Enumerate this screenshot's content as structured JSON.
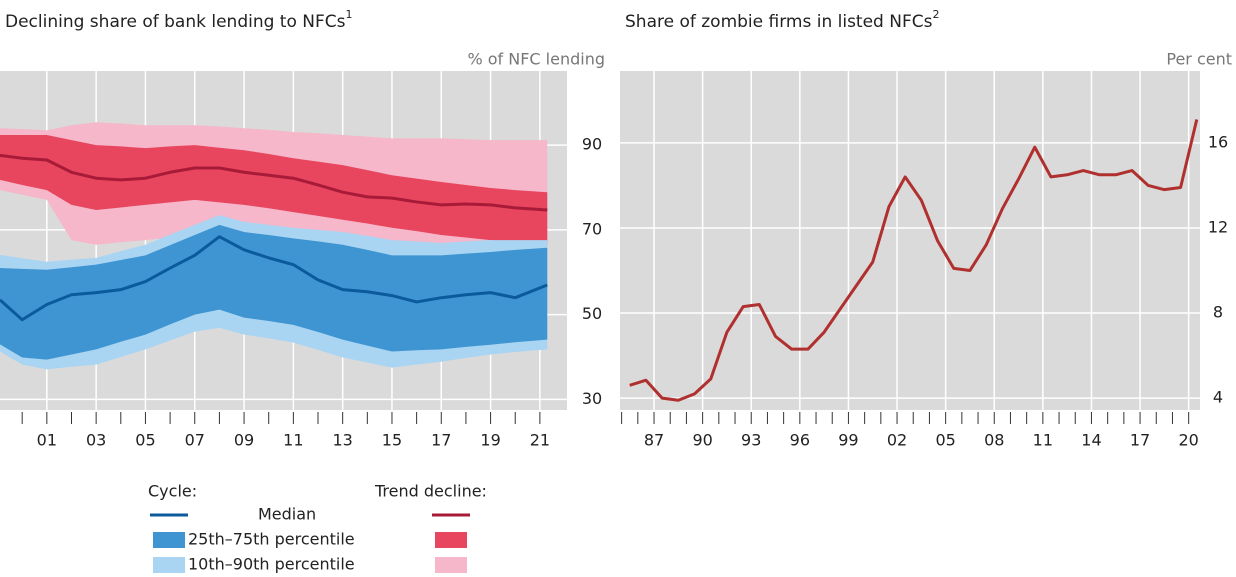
{
  "chart_data": [
    {
      "type": "band-line",
      "title": "Declining share of bank lending to NFCs",
      "title_note": "1",
      "y_label": "% of NFC lending",
      "x": [
        1999.1,
        2000,
        2001,
        2002,
        2003,
        2004,
        2005,
        2006,
        2007,
        2008,
        2009,
        2010,
        2011,
        2012,
        2013,
        2014,
        2015,
        2016,
        2017,
        2018,
        2019,
        2020,
        2021.3
      ],
      "xlim": [
        1999.1,
        2022.1
      ],
      "xticks": [
        {
          "value": 2001,
          "label": "01"
        },
        {
          "value": 2003,
          "label": "03"
        },
        {
          "value": 2005,
          "label": "05"
        },
        {
          "value": 2007,
          "label": "07"
        },
        {
          "value": 2009,
          "label": "09"
        },
        {
          "value": 2011,
          "label": "11"
        },
        {
          "value": 2013,
          "label": "13"
        },
        {
          "value": 2015,
          "label": "15"
        },
        {
          "value": 2017,
          "label": "17"
        },
        {
          "value": 2019,
          "label": "19"
        },
        {
          "value": 2021,
          "label": "21"
        }
      ],
      "xminorticks": [
        2000,
        2002,
        2004,
        2006,
        2008,
        2010,
        2012,
        2014,
        2016,
        2018,
        2020
      ],
      "ylim": [
        27.5,
        107.5
      ],
      "yticks": [
        30,
        50,
        70,
        90
      ],
      "grid": true,
      "legend_items": [
        "Median",
        "25th–75th percentile",
        "10th–90th percentile"
      ],
      "groups": [
        {
          "name": "Cycle:",
          "median": {
            "color": "#0b5a9c",
            "values": [
              53.5,
              48.8,
              52.4,
              54.7,
              55.2,
              55.9,
              57.8,
              61,
              64,
              68.4,
              65.3,
              63.4,
              61.8,
              58.2,
              55.9,
              55.4,
              54.5,
              53,
              54,
              54.7,
              55.2,
              54,
              57
            ]
          },
          "bands": [
            {
              "color": "#3f95d1",
              "lower": [
                43,
                39.9,
                39.4,
                40.6,
                41.8,
                43.6,
                45.3,
                47.7,
                50,
                51.2,
                49.3,
                48.5,
                47.6,
                45.9,
                44.1,
                42.7,
                41.3,
                41.6,
                41.8,
                42.4,
                42.9,
                43.5,
                44.1
              ],
              "upper": [
                61,
                60.8,
                60.6,
                61.2,
                61.8,
                62.9,
                64,
                66.4,
                68.8,
                71.2,
                69.5,
                68.8,
                68,
                67.3,
                66.5,
                65.3,
                64,
                64,
                64,
                64.4,
                64.8,
                65.3,
                65.8
              ]
            },
            {
              "color": "#a9d5f3",
              "lower": [
                41.3,
                38.2,
                37.1,
                37.7,
                38.2,
                40,
                41.8,
                43.9,
                46,
                46.9,
                45.3,
                44.4,
                43.4,
                41.7,
                39.9,
                38.7,
                37.5,
                38.2,
                38.9,
                39.8,
                40.6,
                41.2,
                41.8
              ],
              "upper": [
                64.1,
                63.3,
                62.5,
                63,
                63.4,
                65,
                66.5,
                68.9,
                71.2,
                73.5,
                71.9,
                71.2,
                70.5,
                70,
                69.5,
                68.6,
                67.6,
                67.3,
                66.9,
                67.3,
                67.6,
                67.6,
                67.6
              ]
            }
          ]
        },
        {
          "name": "Trend decline:",
          "median": {
            "color": "#a81b38",
            "values": [
              87.6,
              86.9,
              86.5,
              83.6,
              82.2,
              81.8,
              82.2,
              83.6,
              84.6,
              84.6,
              83.6,
              82.9,
              82.2,
              80.6,
              78.9,
              77.8,
              77.5,
              76.6,
              75.9,
              76.1,
              75.9,
              75.2,
              74.7
            ]
          },
          "bands": [
            {
              "color": "#e8455f",
              "lower": [
                81.8,
                80.6,
                79.4,
                75.9,
                74.7,
                75.3,
                75.9,
                76.5,
                77.1,
                76.5,
                75.9,
                75.1,
                74.2,
                73.3,
                72.4,
                71.5,
                70.5,
                69.7,
                68.8,
                68.2,
                67.6,
                67.1,
                66.5
              ],
              "upper": [
                92.4,
                92.4,
                92.4,
                91.2,
                90,
                89.7,
                89.3,
                89.7,
                90,
                89.4,
                88.8,
                87.9,
                86.9,
                86.1,
                85.3,
                84.1,
                82.9,
                82.1,
                81.3,
                80.6,
                79.9,
                79.4,
                78.9
              ]
            },
            {
              "color": "#f5b7c9",
              "lower": [
                79.4,
                78.3,
                77.1,
                67.6,
                66.5,
                67.1,
                67.6,
                68.2,
                68.8,
                68.2,
                67.6,
                67.1,
                66.5,
                65.7,
                64.8,
                64.1,
                63.4,
                64.1,
                64.8,
                65.1,
                65.3,
                65.9,
                66.5
              ],
              "upper": [
                94,
                93.8,
                93.5,
                94.7,
                95.4,
                95.1,
                94.7,
                94.7,
                94.7,
                94.4,
                94,
                93.6,
                93.1,
                92.8,
                92.4,
                92,
                91.6,
                91.6,
                91.6,
                91.4,
                91.2,
                91.2,
                91.2
              ]
            }
          ]
        }
      ]
    },
    {
      "type": "line",
      "title": "Share of zombie firms in listed NFCs",
      "title_note": "2",
      "y_label": "Per cent",
      "x": [
        1985.5,
        1986.5,
        1987.5,
        1988.5,
        1989.5,
        1990.5,
        1991.5,
        1992.5,
        1993.5,
        1994.5,
        1995.5,
        1996.5,
        1997.5,
        1998.5,
        1999.5,
        2000.5,
        2001.5,
        2002.5,
        2003.5,
        2004.5,
        2005.5,
        2006.5,
        2007.5,
        2008.5,
        2009.5,
        2010.5,
        2011.5,
        2012.5,
        2013.5,
        2014.5,
        2015.5,
        2016.5,
        2017.5,
        2018.5,
        2019.5,
        2020.5
      ],
      "values": [
        4.6,
        4.84,
        4.0,
        3.9,
        4.2,
        4.9,
        7.1,
        8.3,
        8.4,
        6.9,
        6.3,
        6.3,
        7.1,
        8.2,
        9.3,
        10.4,
        13.0,
        14.4,
        13.3,
        11.4,
        10.1,
        10.0,
        11.2,
        12.9,
        14.3,
        15.8,
        14.4,
        14.5,
        14.7,
        14.5,
        14.5,
        14.7,
        14.0,
        13.8,
        13.9,
        17.1
      ],
      "color": "#b0302f",
      "xlim": [
        1984.9,
        2020.7
      ],
      "xticks": [
        {
          "value": 1987,
          "label": "87"
        },
        {
          "value": 1990,
          "label": "90"
        },
        {
          "value": 1993,
          "label": "93"
        },
        {
          "value": 1996,
          "label": "96"
        },
        {
          "value": 1999,
          "label": "99"
        },
        {
          "value": 2002,
          "label": "02"
        },
        {
          "value": 2005,
          "label": "05"
        },
        {
          "value": 2008,
          "label": "08"
        },
        {
          "value": 2011,
          "label": "11"
        },
        {
          "value": 2014,
          "label": "14"
        },
        {
          "value": 2017,
          "label": "17"
        },
        {
          "value": 2020,
          "label": "20"
        }
      ],
      "xminorticks": [
        1985,
        1986,
        1988,
        1989,
        1991,
        1992,
        1994,
        1995,
        1997,
        1998,
        2000,
        2001,
        2003,
        2004,
        2006,
        2007,
        2009,
        2010,
        2012,
        2013,
        2015,
        2016,
        2018,
        2019
      ],
      "ylim": [
        3.44,
        19.38
      ],
      "yticks": [
        4,
        8,
        12,
        16
      ],
      "grid": true
    }
  ]
}
